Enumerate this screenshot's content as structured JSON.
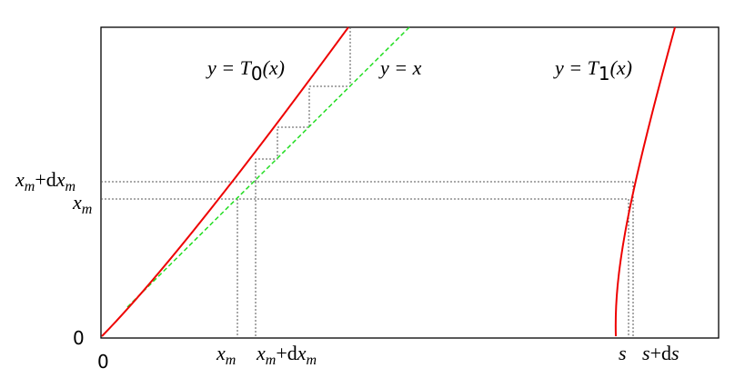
{
  "axis": {
    "y_origin": "0",
    "x_origin": "0"
  },
  "curves": {
    "t0": [
      "y = T",
      "0",
      "(x)"
    ],
    "identity": "y = x",
    "t1": [
      "y = T",
      "1",
      "(x)"
    ]
  },
  "y_labels": {
    "xm_dxm": [
      "x",
      "m",
      "+d",
      "x",
      "m"
    ],
    "xm": [
      "x",
      "m"
    ]
  },
  "x_labels": {
    "xm": [
      "x",
      "m"
    ],
    "xm_dxm": [
      "x",
      "m",
      "+d",
      "x",
      "m"
    ],
    "s": "s",
    "s_ds": [
      "s",
      "+d",
      "s"
    ]
  }
}
